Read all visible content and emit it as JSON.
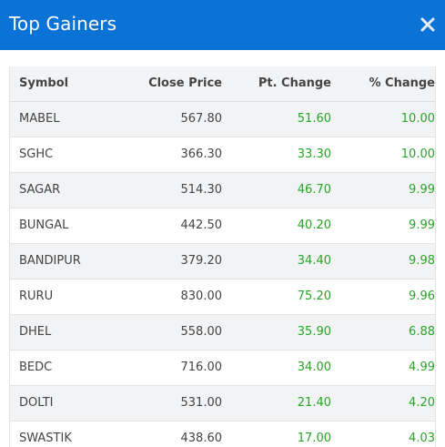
{
  "header": {
    "title": "Top Gainers",
    "close_icon": "close-icon"
  },
  "colors": {
    "header_bg": "#0b73d6",
    "positive": "#27a527",
    "row_alt": "#f2f3f5"
  },
  "table": {
    "columns": [
      "Symbol",
      "Close Price",
      "Pt. Change",
      "% Change"
    ],
    "rows": [
      {
        "symbol": "MABEL",
        "close": "567.80",
        "pt": "51.60",
        "pct": "10.00"
      },
      {
        "symbol": "SGHC",
        "close": "366.30",
        "pt": "33.30",
        "pct": "10.00"
      },
      {
        "symbol": "SAGAR",
        "close": "514.30",
        "pt": "46.70",
        "pct": "9.99"
      },
      {
        "symbol": "BUNGAL",
        "close": "442.50",
        "pt": "40.20",
        "pct": "9.99"
      },
      {
        "symbol": "BANDIPUR",
        "close": "379.20",
        "pt": "34.40",
        "pct": "9.98"
      },
      {
        "symbol": "RURU",
        "close": "830.00",
        "pt": "75.20",
        "pct": "9.96"
      },
      {
        "symbol": "DHEL",
        "close": "558.00",
        "pt": "35.90",
        "pct": "6.88"
      },
      {
        "symbol": "BEDC",
        "close": "716.00",
        "pt": "34.00",
        "pct": "4.99"
      },
      {
        "symbol": "DOLTI",
        "close": "531.00",
        "pt": "21.40",
        "pct": "4.20"
      },
      {
        "symbol": "SWASTIK",
        "close": "438.60",
        "pt": "17.00",
        "pct": "4.03"
      }
    ]
  }
}
